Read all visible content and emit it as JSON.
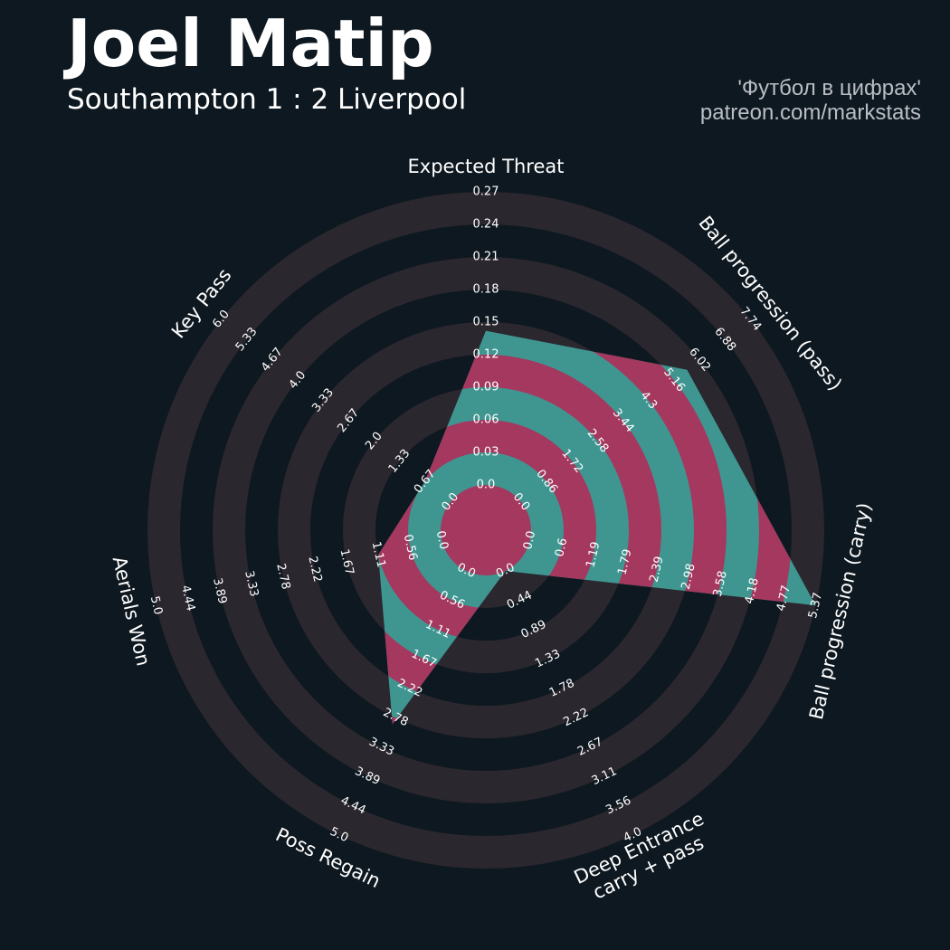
{
  "header": {
    "player_name": "Joel Matip",
    "match": "Southampton 1 : 2 Liverpool",
    "credit_line1": "'Футбол в цифрах'",
    "credit_line2": "patreon.com/markstats"
  },
  "colors": {
    "background": "#0e1820",
    "ring": "#2b272e",
    "polygon_teal": "#3f9691",
    "polygon_pink": "#a4385e",
    "label": "#ffffff"
  },
  "chart_data": {
    "type": "radar",
    "title": "Joel Matip",
    "subtitle": "Southampton 1 : 2 Liverpool",
    "metrics": [
      {
        "label": [
          "Expected Threat"
        ],
        "ticks": [
          "0.0",
          "0.03",
          "0.06",
          "0.09",
          "0.12",
          "0.15",
          "0.18",
          "0.21",
          "0.24",
          "0.27"
        ],
        "min": 0,
        "max": 0.27,
        "value": 0.142
      },
      {
        "label": [
          "Ball progression (pass)"
        ],
        "ticks": [
          "0.0",
          "0.86",
          "1.72",
          "2.58",
          "3.44",
          "4.3",
          "5.16",
          "6.02",
          "6.88",
          "7.74"
        ],
        "min": 0,
        "max": 7.74,
        "value": 5.6
      },
      {
        "label": [
          "Ball progression (carry)"
        ],
        "ticks": [
          "0.0",
          "0.6",
          "1.19",
          "1.79",
          "2.39",
          "2.98",
          "3.58",
          "4.18",
          "4.77",
          "5.37"
        ],
        "min": 0,
        "max": 5.37,
        "value": 5.37
      },
      {
        "label": [
          "Deep Entrance",
          "carry + pass"
        ],
        "ticks": [
          "0.0",
          "0.44",
          "0.89",
          "1.33",
          "1.78",
          "2.22",
          "2.67",
          "3.11",
          "3.56",
          "4.0"
        ],
        "min": 0,
        "max": 4.0,
        "value": 0.0
      },
      {
        "label": [
          "Poss Regain"
        ],
        "ticks": [
          "0.0",
          "0.56",
          "1.11",
          "1.67",
          "2.22",
          "2.78",
          "3.33",
          "3.89",
          "4.44",
          "5.0"
        ],
        "min": 0,
        "max": 5.0,
        "value": 2.9
      },
      {
        "label": [
          "Aerials Won"
        ],
        "ticks": [
          "0.0",
          "0.56",
          "1.11",
          "1.67",
          "2.22",
          "2.78",
          "3.33",
          "3.89",
          "4.44",
          "5.0"
        ],
        "min": 0,
        "max": 5.0,
        "value": 1.11
      },
      {
        "label": [
          "Key Pass"
        ],
        "ticks": [
          "0.0",
          "0.67",
          "1.33",
          "2.0",
          "2.67",
          "3.33",
          "4.0",
          "4.67",
          "5.33",
          "6.0"
        ],
        "min": 0,
        "max": 6.0,
        "value": 0.67
      }
    ],
    "grid": true,
    "legend": "none"
  }
}
